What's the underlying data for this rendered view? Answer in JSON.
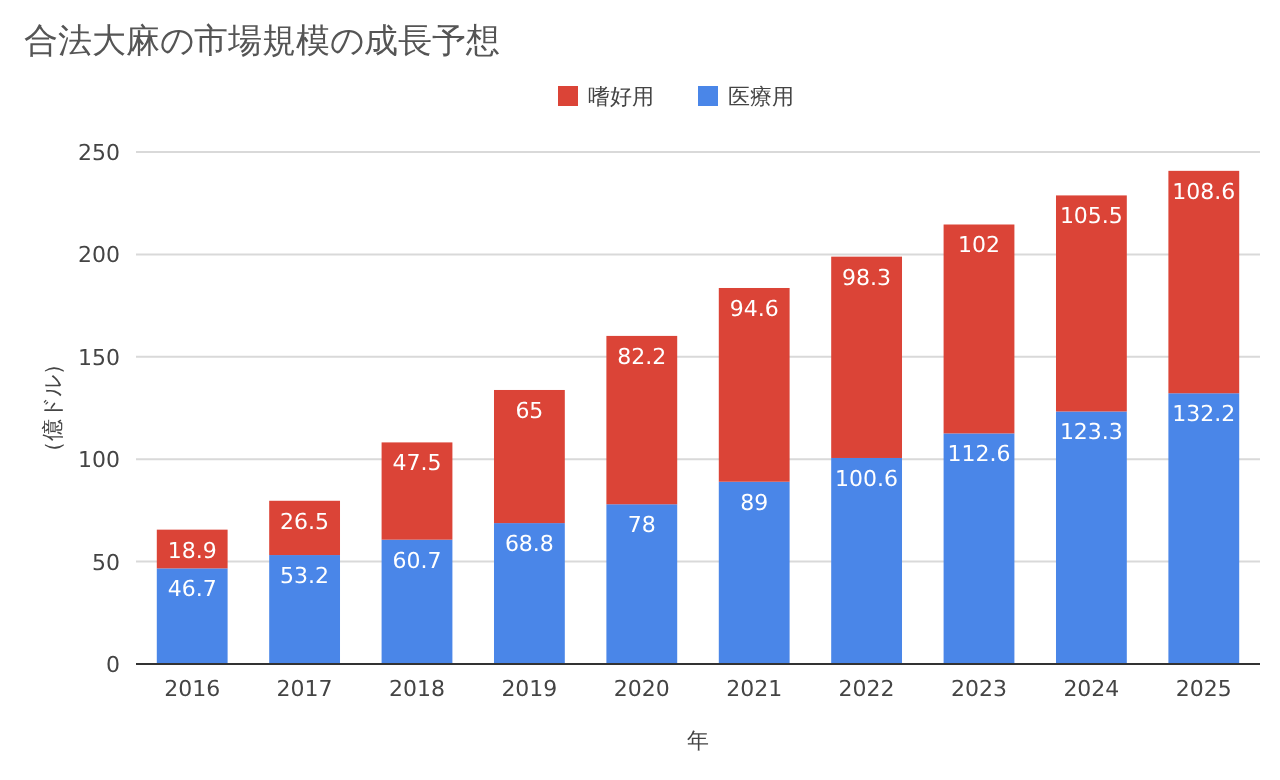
{
  "chart_data": {
    "type": "bar",
    "title": "合法大麻の市場規模の成長予想",
    "xlabel": "年",
    "ylabel": "（億ドル）",
    "categories": [
      "2016",
      "2017",
      "2018",
      "2019",
      "2020",
      "2021",
      "2022",
      "2023",
      "2024",
      "2025"
    ],
    "stacked": true,
    "series": [
      {
        "name": "医療用",
        "color": "#4a86e8",
        "values": [
          46.7,
          53.2,
          60.7,
          68.8,
          78,
          89,
          100.6,
          112.6,
          123.3,
          132.2
        ]
      },
      {
        "name": "嗜好用",
        "color": "#db4437",
        "values": [
          18.9,
          26.5,
          47.5,
          65,
          82.2,
          94.6,
          98.3,
          102,
          105.5,
          108.6
        ]
      }
    ],
    "ylim": [
      0,
      250
    ],
    "yticks": [
      0,
      50,
      100,
      150,
      200,
      250
    ],
    "grid": "y",
    "legend": "top",
    "data_labels": true
  }
}
